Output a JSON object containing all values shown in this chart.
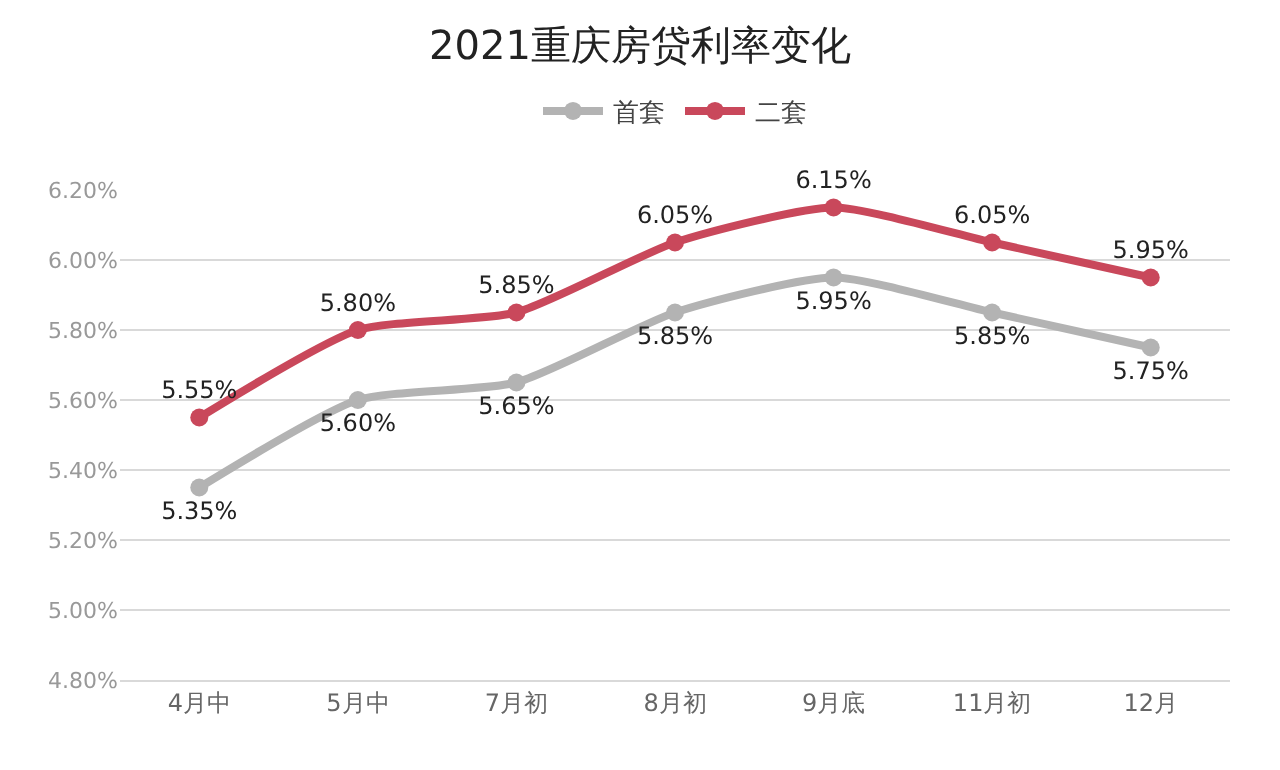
{
  "chart_data": {
    "type": "line",
    "title": "2021重庆房贷利率变化",
    "categories": [
      "4月中",
      "5月中",
      "7月初",
      "8月初",
      "9月底",
      "11月初",
      "12月"
    ],
    "series": [
      {
        "name": "首套",
        "color": "#b3b3b3",
        "values": [
          5.35,
          5.6,
          5.65,
          5.85,
          5.95,
          5.85,
          5.75
        ],
        "value_labels": [
          "5.35%",
          "5.60%",
          "5.65%",
          "5.85%",
          "5.95%",
          "5.85%",
          "5.75%"
        ]
      },
      {
        "name": "二套",
        "color": "#c9485b",
        "values": [
          5.55,
          5.8,
          5.85,
          6.05,
          6.15,
          6.05,
          5.95
        ],
        "value_labels": [
          "5.55%",
          "5.80%",
          "5.85%",
          "6.05%",
          "6.15%",
          "6.05%",
          "5.95%"
        ]
      }
    ],
    "ylim": [
      4.8,
      6.2
    ],
    "yticks": [
      {
        "value": 4.8,
        "label": "4.80%"
      },
      {
        "value": 5.0,
        "label": "5.00%"
      },
      {
        "value": 5.2,
        "label": "5.20%"
      },
      {
        "value": 5.4,
        "label": "5.40%"
      },
      {
        "value": 5.6,
        "label": "5.60%"
      },
      {
        "value": 5.8,
        "label": "5.80%"
      },
      {
        "value": 6.0,
        "label": "6.00%"
      },
      {
        "value": 6.2,
        "label": "6.20%"
      }
    ],
    "grid": "y",
    "legend": "top",
    "marker": "circle",
    "line_style": "solid"
  }
}
